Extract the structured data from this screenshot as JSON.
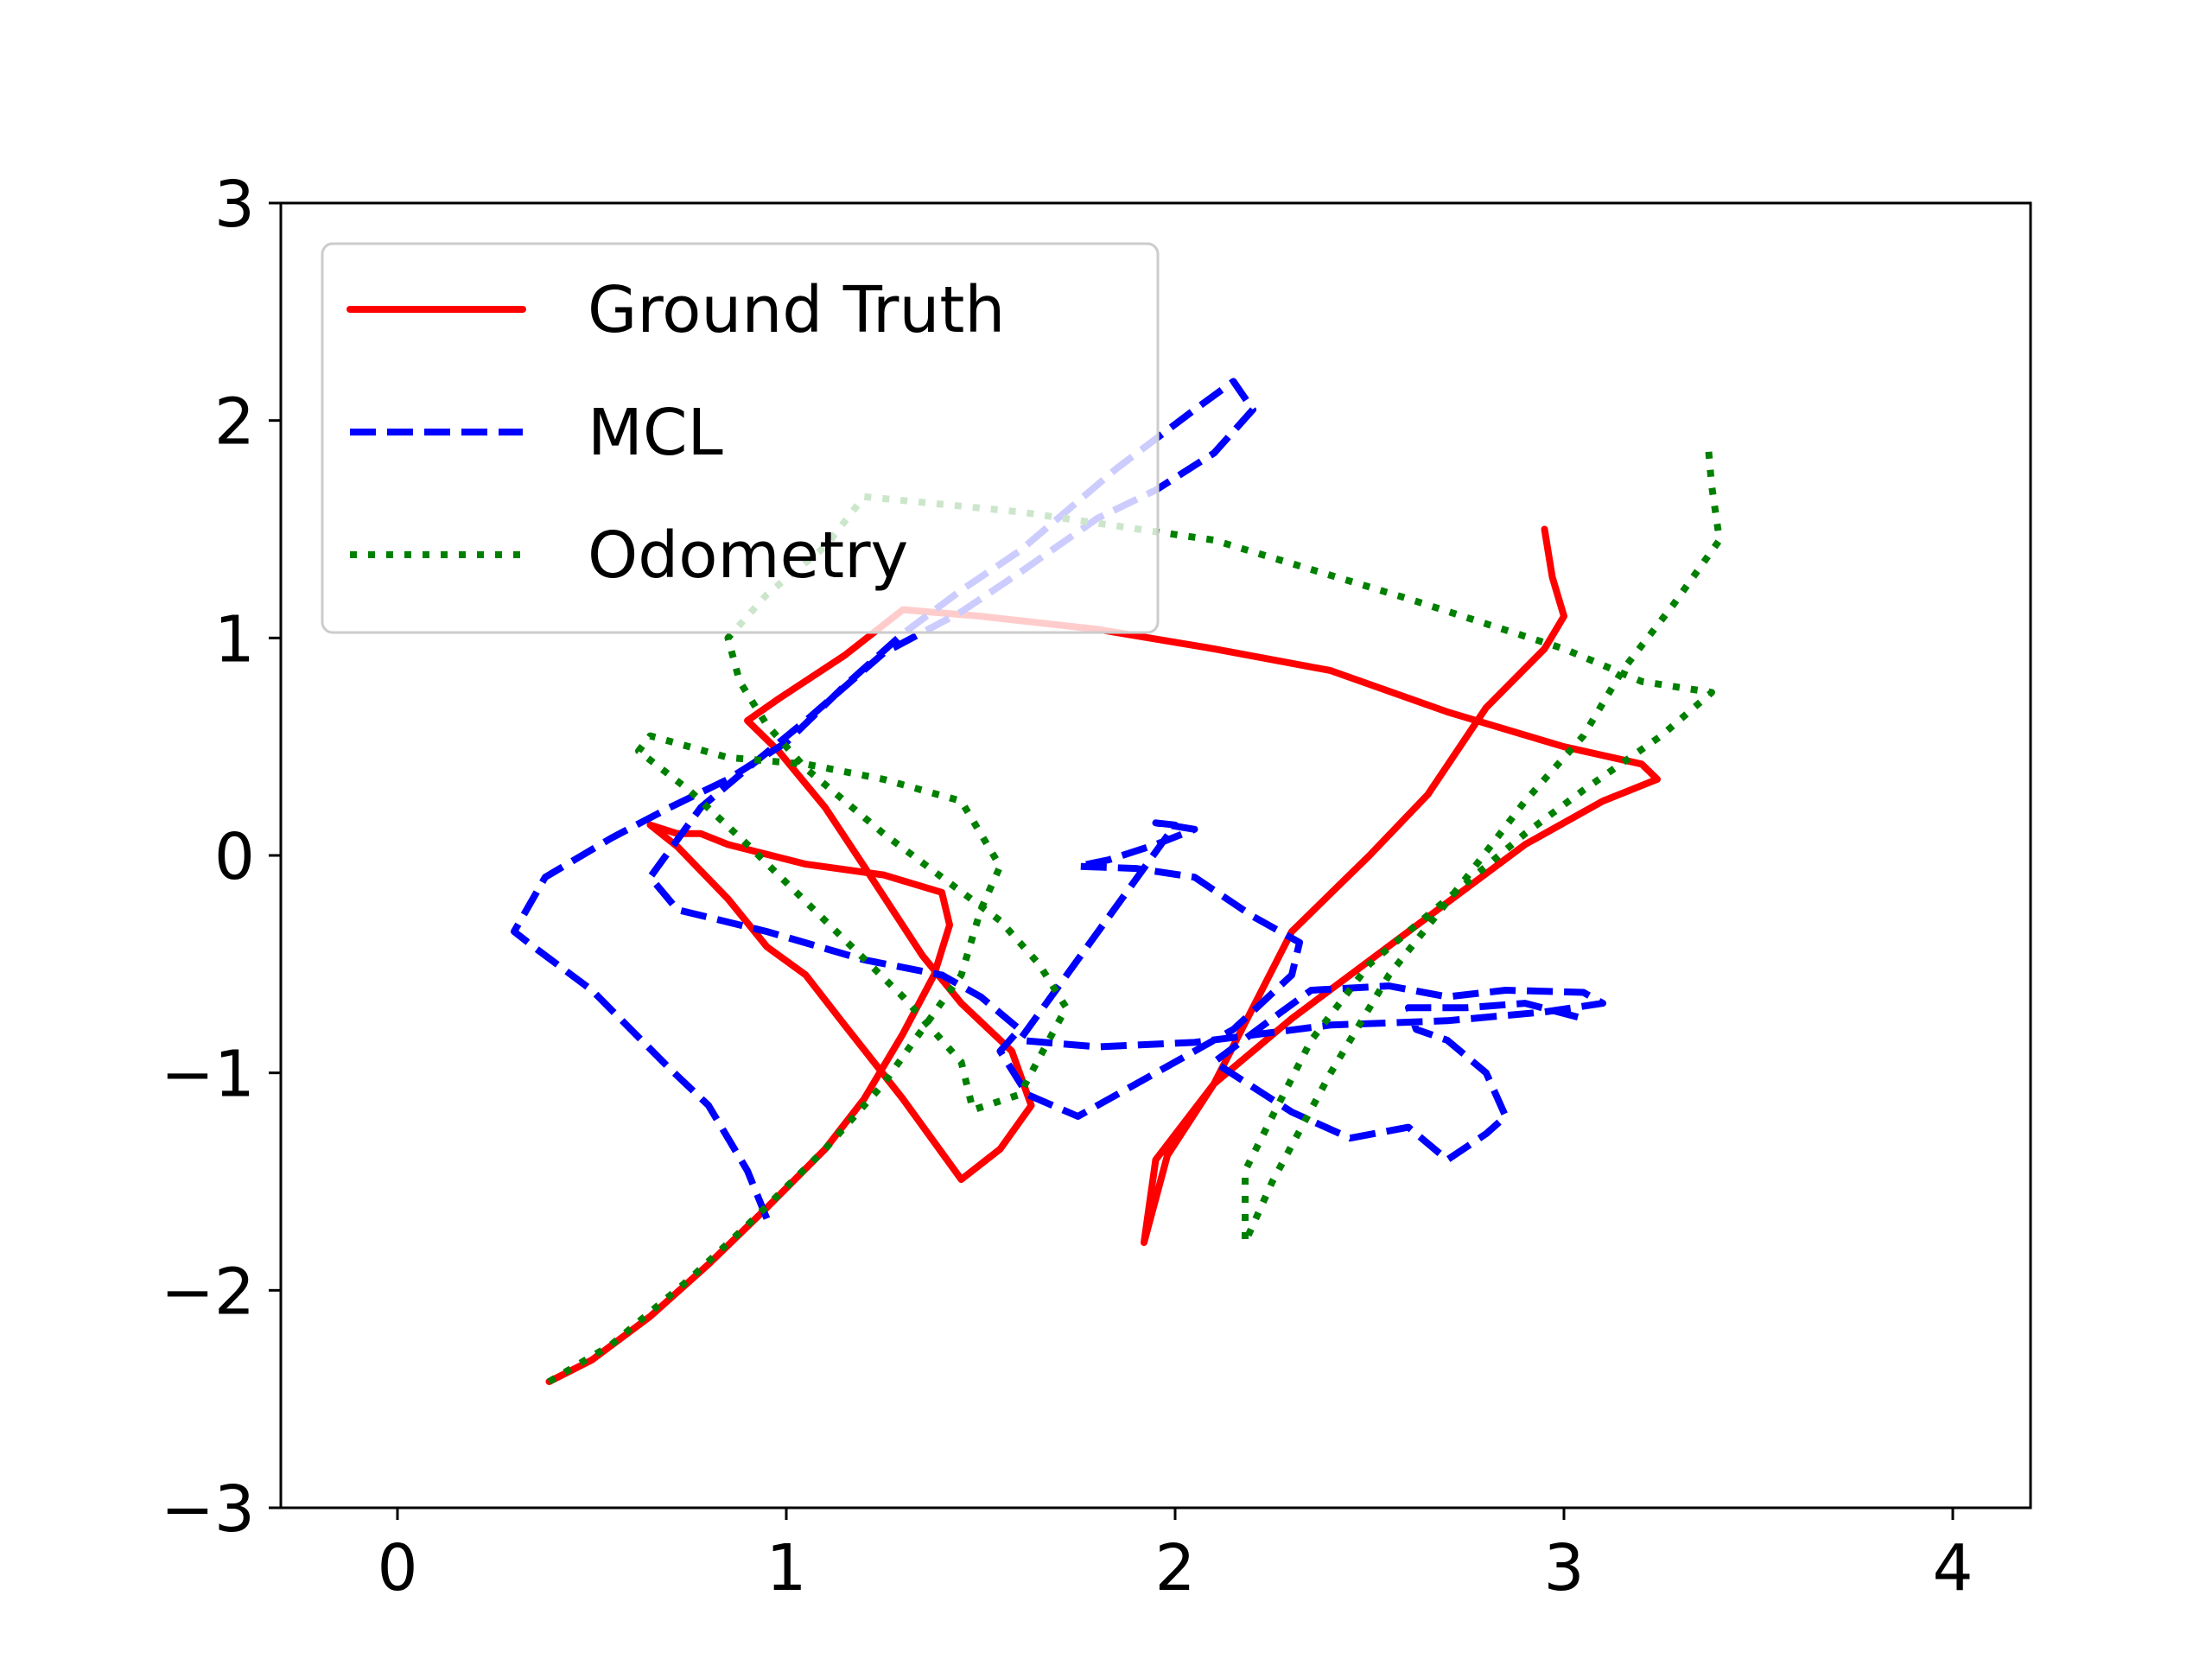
{
  "chart_data": {
    "type": "line",
    "title": "",
    "xlabel": "",
    "ylabel": "",
    "xlim": [
      -0.3,
      4.2
    ],
    "ylim": [
      -3,
      3
    ],
    "xticks": [
      0,
      1,
      2,
      3,
      4
    ],
    "yticks": [
      -3,
      -2,
      -1,
      0,
      1,
      2,
      3
    ],
    "xtick_labels": [
      "0",
      "1",
      "2",
      "3",
      "4"
    ],
    "ytick_labels": [
      "−3",
      "−2",
      "−1",
      "0",
      "1",
      "2",
      "3"
    ],
    "grid": false,
    "legend": {
      "placement": "upper-left"
    },
    "series": [
      {
        "name": "Ground Truth",
        "color": "#ff0000",
        "style": "solid",
        "points": [
          [
            0.39,
            -2.42
          ],
          [
            0.5,
            -2.32
          ],
          [
            0.65,
            -2.12
          ],
          [
            0.8,
            -1.88
          ],
          [
            0.95,
            -1.62
          ],
          [
            1.1,
            -1.35
          ],
          [
            1.2,
            -1.12
          ],
          [
            1.3,
            -0.82
          ],
          [
            1.38,
            -0.55
          ],
          [
            1.42,
            -0.32
          ],
          [
            1.4,
            -0.17
          ],
          [
            1.25,
            -0.09
          ],
          [
            1.05,
            -0.04
          ],
          [
            0.85,
            0.05
          ],
          [
            0.78,
            0.1
          ],
          [
            0.72,
            0.1
          ],
          [
            0.65,
            0.14
          ],
          [
            0.72,
            0.04
          ],
          [
            0.85,
            -0.2
          ],
          [
            0.95,
            -0.42
          ],
          [
            1.05,
            -0.55
          ],
          [
            1.15,
            -0.78
          ],
          [
            1.3,
            -1.12
          ],
          [
            1.45,
            -1.49
          ],
          [
            1.55,
            -1.35
          ],
          [
            1.63,
            -1.15
          ],
          [
            1.58,
            -0.9
          ],
          [
            1.45,
            -0.68
          ],
          [
            1.35,
            -0.46
          ],
          [
            1.2,
            -0.05
          ],
          [
            1.1,
            0.22
          ],
          [
            0.98,
            0.48
          ],
          [
            0.9,
            0.62
          ],
          [
            0.98,
            0.72
          ],
          [
            1.15,
            0.92
          ],
          [
            1.3,
            1.13
          ],
          [
            1.5,
            1.1
          ],
          [
            1.8,
            1.04
          ],
          [
            2.1,
            0.95
          ],
          [
            2.4,
            0.85
          ],
          [
            2.7,
            0.66
          ],
          [
            3.0,
            0.5
          ],
          [
            3.2,
            0.42
          ],
          [
            3.24,
            0.35
          ],
          [
            3.1,
            0.25
          ],
          [
            2.9,
            0.05
          ],
          [
            2.6,
            -0.35
          ],
          [
            2.3,
            -0.75
          ],
          [
            2.1,
            -1.05
          ],
          [
            1.98,
            -1.38
          ],
          [
            1.92,
            -1.78
          ],
          [
            1.95,
            -1.4
          ],
          [
            2.1,
            -1.05
          ],
          [
            2.3,
            -0.35
          ],
          [
            2.5,
            0.0
          ],
          [
            2.65,
            0.28
          ],
          [
            2.8,
            0.68
          ],
          [
            2.95,
            0.95
          ],
          [
            3.0,
            1.1
          ],
          [
            2.97,
            1.28
          ],
          [
            2.95,
            1.5
          ]
        ]
      },
      {
        "name": "MCL",
        "color": "#0000ff",
        "style": "dashed",
        "points": [
          [
            0.95,
            -1.67
          ],
          [
            0.9,
            -1.45
          ],
          [
            0.8,
            -1.15
          ],
          [
            0.7,
            -0.98
          ],
          [
            0.6,
            -0.8
          ],
          [
            0.5,
            -0.62
          ],
          [
            0.35,
            -0.42
          ],
          [
            0.3,
            -0.35
          ],
          [
            0.38,
            -0.1
          ],
          [
            0.55,
            0.08
          ],
          [
            0.7,
            0.22
          ],
          [
            0.85,
            0.35
          ],
          [
            1.0,
            0.52
          ],
          [
            1.15,
            0.78
          ],
          [
            1.3,
            1.02
          ],
          [
            1.45,
            1.22
          ],
          [
            1.6,
            1.4
          ],
          [
            1.85,
            1.78
          ],
          [
            2.05,
            2.05
          ],
          [
            2.15,
            2.18
          ],
          [
            2.2,
            2.05
          ],
          [
            2.1,
            1.85
          ],
          [
            1.95,
            1.68
          ],
          [
            1.8,
            1.55
          ],
          [
            1.6,
            1.3
          ],
          [
            1.45,
            1.12
          ],
          [
            1.25,
            0.93
          ],
          [
            1.05,
            0.62
          ],
          [
            0.9,
            0.4
          ],
          [
            0.78,
            0.22
          ],
          [
            0.65,
            -0.1
          ],
          [
            0.72,
            -0.25
          ],
          [
            0.95,
            -0.35
          ],
          [
            1.2,
            -0.48
          ],
          [
            1.4,
            -0.55
          ],
          [
            1.5,
            -0.65
          ],
          [
            1.6,
            -0.8
          ],
          [
            1.55,
            -0.9
          ],
          [
            1.62,
            -1.1
          ],
          [
            1.75,
            -1.2
          ],
          [
            1.95,
            -1.0
          ],
          [
            2.15,
            -0.8
          ],
          [
            2.3,
            -0.55
          ],
          [
            2.32,
            -0.4
          ],
          [
            2.2,
            -0.28
          ],
          [
            2.05,
            -0.1
          ],
          [
            1.9,
            -0.06
          ],
          [
            1.75,
            -0.05
          ],
          [
            1.83,
            -0.02
          ],
          [
            1.95,
            0.05
          ],
          [
            2.05,
            0.12
          ],
          [
            1.95,
            0.15
          ],
          [
            2.0,
            0.14
          ],
          [
            1.6,
            -0.85
          ],
          [
            1.8,
            -0.88
          ],
          [
            2.05,
            -0.86
          ],
          [
            2.4,
            -0.78
          ],
          [
            2.7,
            -0.76
          ],
          [
            2.95,
            -0.72
          ],
          [
            3.1,
            -0.68
          ],
          [
            3.05,
            -0.63
          ],
          [
            2.85,
            -0.62
          ],
          [
            2.7,
            -0.65
          ],
          [
            2.55,
            -0.6
          ],
          [
            2.35,
            -0.62
          ],
          [
            2.25,
            -0.75
          ],
          [
            2.1,
            -0.95
          ],
          [
            2.3,
            -1.18
          ],
          [
            2.45,
            -1.3
          ],
          [
            2.6,
            -1.25
          ],
          [
            2.7,
            -1.4
          ],
          [
            2.8,
            -1.28
          ],
          [
            2.85,
            -1.2
          ],
          [
            2.8,
            -1.0
          ],
          [
            2.7,
            -0.85
          ],
          [
            2.62,
            -0.8
          ],
          [
            2.6,
            -0.7
          ],
          [
            2.75,
            -0.7
          ],
          [
            2.9,
            -0.68
          ],
          [
            3.05,
            -0.75
          ]
        ]
      },
      {
        "name": "Odometry",
        "color": "#008000",
        "style": "dotted",
        "points": [
          [
            0.39,
            -2.42
          ],
          [
            0.55,
            -2.25
          ],
          [
            0.75,
            -1.95
          ],
          [
            0.9,
            -1.7
          ],
          [
            1.1,
            -1.35
          ],
          [
            1.25,
            -1.05
          ],
          [
            1.35,
            -0.8
          ],
          [
            1.45,
            -0.55
          ],
          [
            1.5,
            -0.25
          ],
          [
            1.55,
            -0.05
          ],
          [
            1.45,
            0.25
          ],
          [
            1.25,
            0.35
          ],
          [
            1.05,
            0.42
          ],
          [
            0.85,
            0.45
          ],
          [
            0.65,
            0.55
          ],
          [
            0.62,
            0.48
          ],
          [
            0.75,
            0.3
          ],
          [
            0.9,
            0.05
          ],
          [
            1.1,
            -0.3
          ],
          [
            1.3,
            -0.65
          ],
          [
            1.45,
            -0.95
          ],
          [
            1.48,
            -1.17
          ],
          [
            1.6,
            -1.1
          ],
          [
            1.72,
            -0.7
          ],
          [
            1.65,
            -0.5
          ],
          [
            1.55,
            -0.3
          ],
          [
            1.4,
            -0.1
          ],
          [
            1.25,
            0.1
          ],
          [
            1.05,
            0.4
          ],
          [
            0.95,
            0.6
          ],
          [
            0.88,
            0.8
          ],
          [
            0.85,
            1.0
          ],
          [
            0.95,
            1.2
          ],
          [
            1.1,
            1.42
          ],
          [
            1.2,
            1.65
          ],
          [
            1.6,
            1.58
          ],
          [
            2.1,
            1.45
          ],
          [
            2.6,
            1.18
          ],
          [
            3.0,
            0.95
          ],
          [
            3.2,
            0.8
          ],
          [
            3.38,
            0.75
          ],
          [
            3.25,
            0.55
          ],
          [
            3.05,
            0.3
          ],
          [
            2.9,
            0.1
          ],
          [
            2.7,
            -0.2
          ],
          [
            2.5,
            -0.5
          ],
          [
            2.35,
            -0.85
          ],
          [
            2.25,
            -1.2
          ],
          [
            2.18,
            -1.45
          ],
          [
            2.18,
            -1.78
          ],
          [
            2.25,
            -1.5
          ],
          [
            2.4,
            -1.0
          ],
          [
            2.55,
            -0.55
          ],
          [
            2.75,
            -0.1
          ],
          [
            2.9,
            0.25
          ],
          [
            3.05,
            0.55
          ],
          [
            3.15,
            0.85
          ],
          [
            3.28,
            1.15
          ],
          [
            3.4,
            1.45
          ],
          [
            3.38,
            1.7
          ],
          [
            3.37,
            1.9
          ]
        ]
      }
    ]
  }
}
